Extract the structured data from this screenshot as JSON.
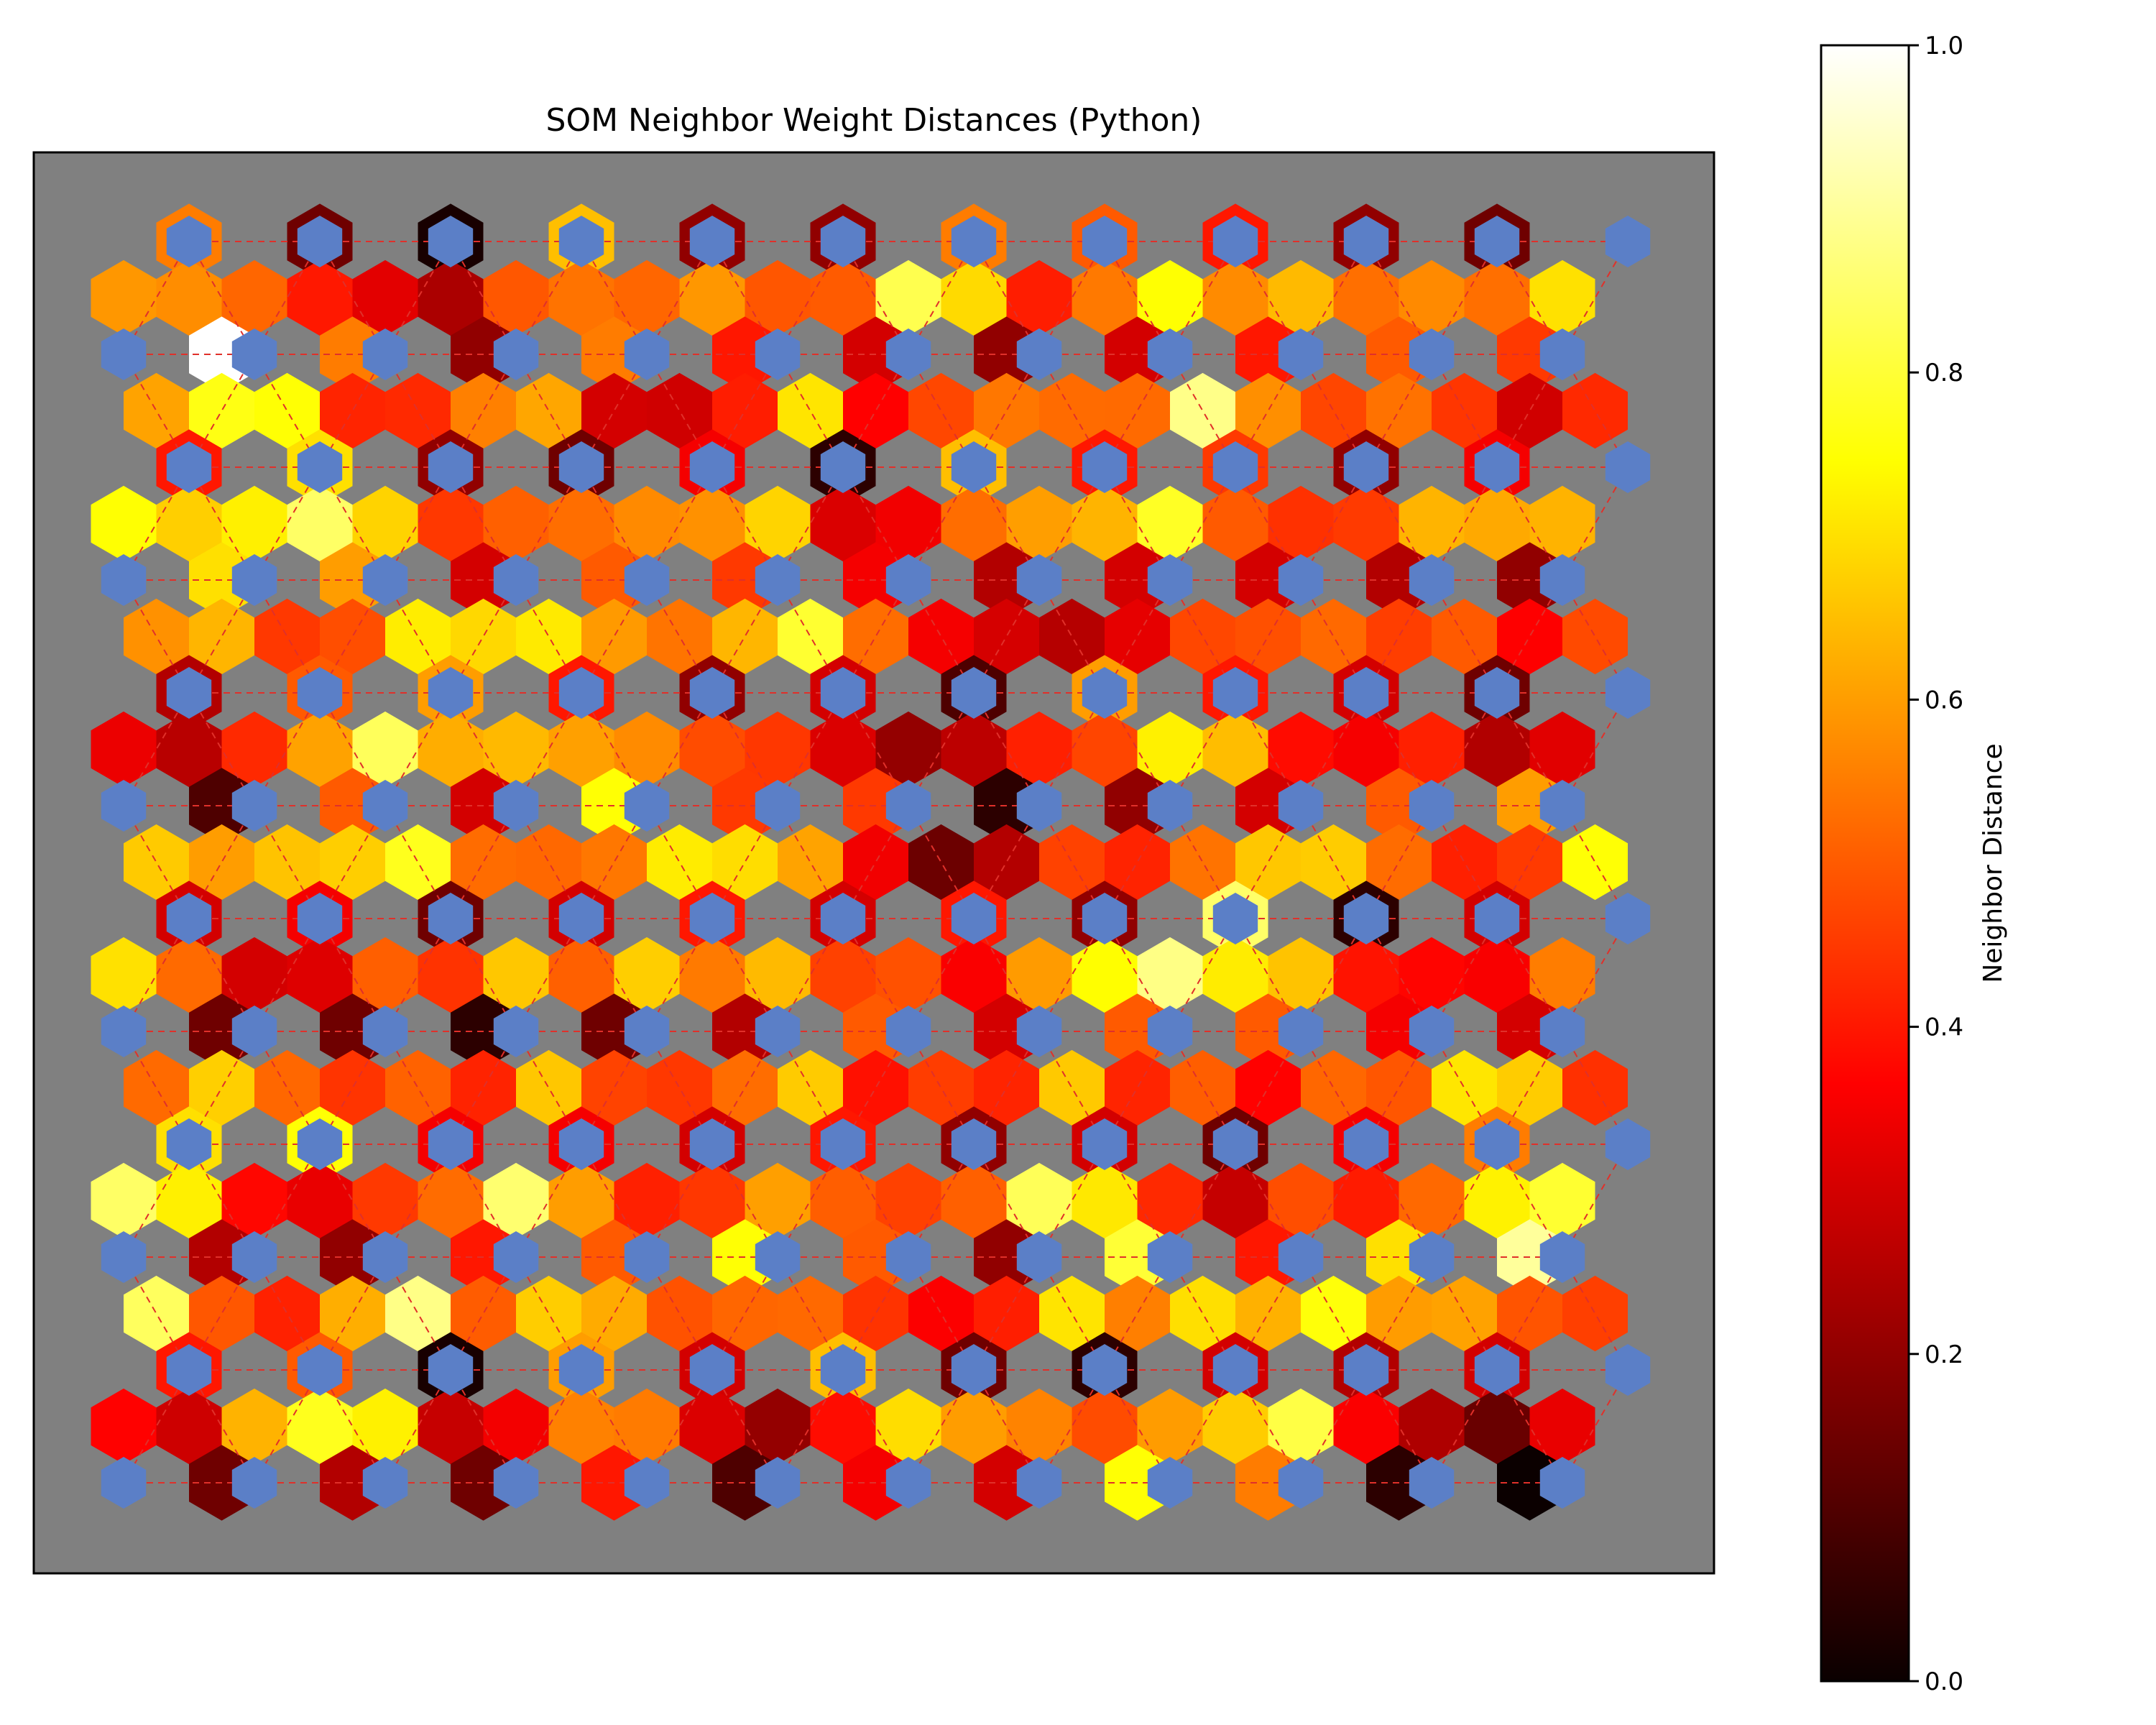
{
  "chart_data": {
    "type": "heatmap",
    "subtype": "hexagonal-som-u-matrix",
    "title": "SOM Neighbor Weight Distances (Python)",
    "colormap": "hot",
    "background_color": "#808080",
    "neuron_color": "#5B7FC7",
    "link_color": "#E0302A",
    "grid": false,
    "colorbar": {
      "label": "Neighbor Distance",
      "range": [
        0.0,
        1.0
      ],
      "ticks": [
        "0.0",
        "0.2",
        "0.4",
        "0.6",
        "0.8",
        "1.0"
      ],
      "location": "right"
    },
    "neuron_rows": 12,
    "neuron_cols": 12,
    "horizontal_link_values": [
      [
        0.55,
        0.15,
        0.02,
        0.65,
        0.2,
        0.2,
        0.55,
        0.5,
        0.4,
        0.2,
        0.15
      ],
      [
        1.0,
        0.55,
        0.2,
        0.55,
        0.4,
        0.3,
        0.2,
        0.3,
        0.4,
        0.5,
        0.45
      ],
      [
        0.4,
        0.7,
        0.2,
        0.15,
        0.35,
        0.05,
        0.65,
        0.4,
        0.45,
        0.2,
        0.35
      ],
      [
        0.7,
        0.6,
        0.3,
        0.5,
        0.45,
        0.35,
        0.25,
        0.3,
        0.3,
        0.25,
        0.2
      ],
      [
        0.25,
        0.5,
        0.6,
        0.4,
        0.2,
        0.3,
        0.1,
        0.6,
        0.4,
        0.3,
        0.15
      ],
      [
        0.1,
        0.5,
        0.3,
        0.75,
        0.45,
        0.45,
        0.05,
        0.2,
        0.3,
        0.5,
        0.6
      ],
      [
        0.3,
        0.35,
        0.15,
        0.3,
        0.4,
        0.3,
        0.4,
        0.2,
        0.85,
        0.05,
        0.3
      ],
      [
        0.15,
        0.15,
        0.05,
        0.15,
        0.25,
        0.5,
        0.3,
        0.5,
        0.5,
        0.35,
        0.3
      ],
      [
        0.7,
        0.75,
        0.35,
        0.35,
        0.3,
        0.4,
        0.2,
        0.3,
        0.15,
        0.35,
        0.55
      ],
      [
        0.25,
        0.2,
        0.4,
        0.5,
        0.75,
        0.5,
        0.2,
        0.8,
        0.4,
        0.7,
        0.9
      ],
      [
        0.4,
        0.5,
        0.02,
        0.6,
        0.3,
        0.65,
        0.15,
        0.05,
        0.3,
        0.25,
        0.3
      ],
      [
        0.15,
        0.25,
        0.15,
        0.4,
        0.1,
        0.35,
        0.3,
        0.75,
        0.55,
        0.05,
        0.0
      ]
    ]
  }
}
